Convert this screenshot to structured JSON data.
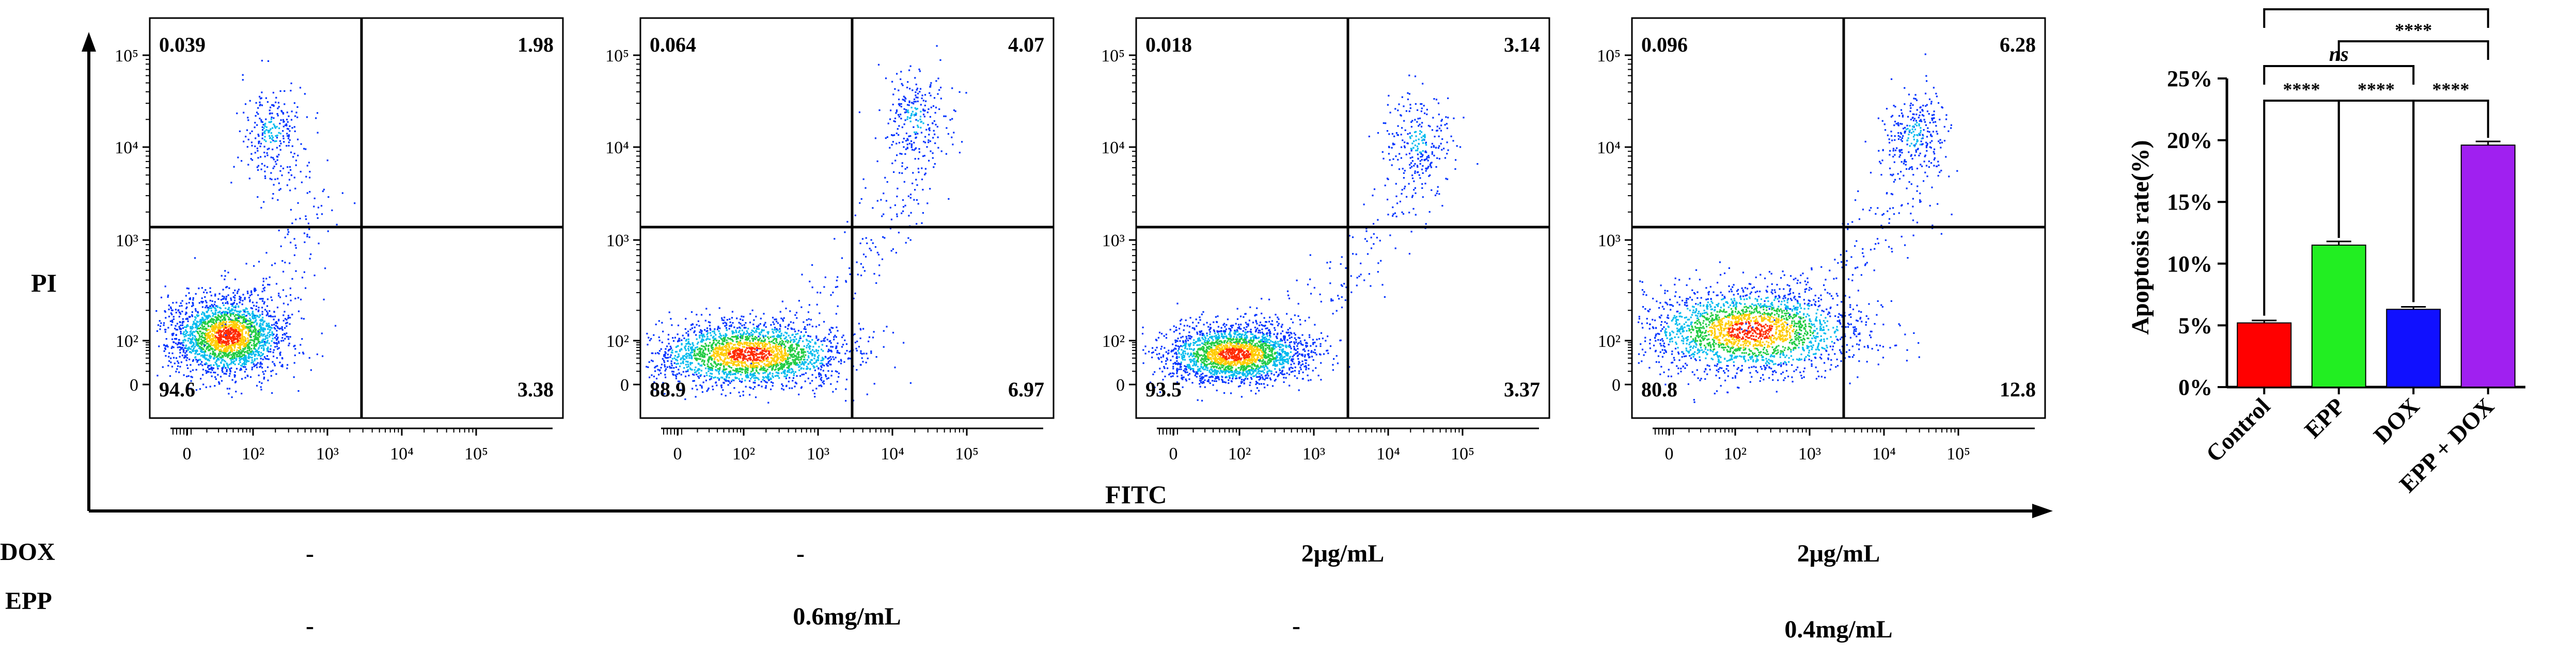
{
  "chart_data": [
    {
      "type": "scatter",
      "subtype": "flow-cytometry-density-dot-plot",
      "xlabel": "FITC",
      "ylabel": "PI",
      "x_scale": "logicle",
      "y_scale": "logicle",
      "x_ticks": [
        "0",
        "10²",
        "10³",
        "10⁴",
        "10⁵"
      ],
      "y_ticks": [
        "0",
        "10²",
        "10³",
        "10⁴",
        "10⁵"
      ],
      "panels": [
        {
          "quadrants": {
            "upper_left": "0.039",
            "upper_right": "1.98",
            "lower_left": "94.6",
            "lower_right": "3.38"
          }
        },
        {
          "quadrants": {
            "upper_left": "0.064",
            "upper_right": "4.07",
            "lower_left": "88.9",
            "lower_right": "6.97"
          }
        },
        {
          "quadrants": {
            "upper_left": "0.018",
            "upper_right": "3.14",
            "lower_left": "93.5",
            "lower_right": "3.37"
          }
        },
        {
          "quadrants": {
            "upper_left": "0.096",
            "upper_right": "6.28",
            "lower_left": "80.8",
            "lower_right": "12.8"
          }
        }
      ]
    },
    {
      "type": "bar",
      "categories": [
        "Control",
        "EPP",
        "DOX",
        "EPP + DOX"
      ],
      "values": [
        5.2,
        11.5,
        6.3,
        19.6
      ],
      "errors": [
        0.2,
        0.3,
        0.2,
        0.3
      ],
      "colors": [
        "#ff0000",
        "#22ee22",
        "#1010ff",
        "#a020f0"
      ],
      "ylabel": "Apoptosis rate(%)",
      "ylim": [
        0,
        25
      ],
      "yticks": [
        "0%",
        "5%",
        "10%",
        "15%",
        "20%",
        "25%"
      ],
      "significance": [
        {
          "pair": [
            "Control",
            "EPP"
          ],
          "label": "****"
        },
        {
          "pair": [
            "EPP",
            "DOX"
          ],
          "label": "****"
        },
        {
          "pair": [
            "DOX",
            "EPP + DOX"
          ],
          "label": "****"
        },
        {
          "pair": [
            "Control",
            "DOX"
          ],
          "label": "ns"
        },
        {
          "pair": [
            "EPP",
            "EPP + DOX"
          ],
          "label": "****"
        },
        {
          "pair": [
            "Control",
            "EPP + DOX"
          ],
          "label": "****"
        }
      ]
    }
  ],
  "treatments": {
    "dox_label": "DOX",
    "epp_label": "EPP",
    "dox": [
      "-",
      "-",
      "2μg/mL",
      "2μg/mL"
    ],
    "epp": [
      "-",
      "0.6mg/mL",
      "-",
      "0.4mg/mL"
    ]
  }
}
